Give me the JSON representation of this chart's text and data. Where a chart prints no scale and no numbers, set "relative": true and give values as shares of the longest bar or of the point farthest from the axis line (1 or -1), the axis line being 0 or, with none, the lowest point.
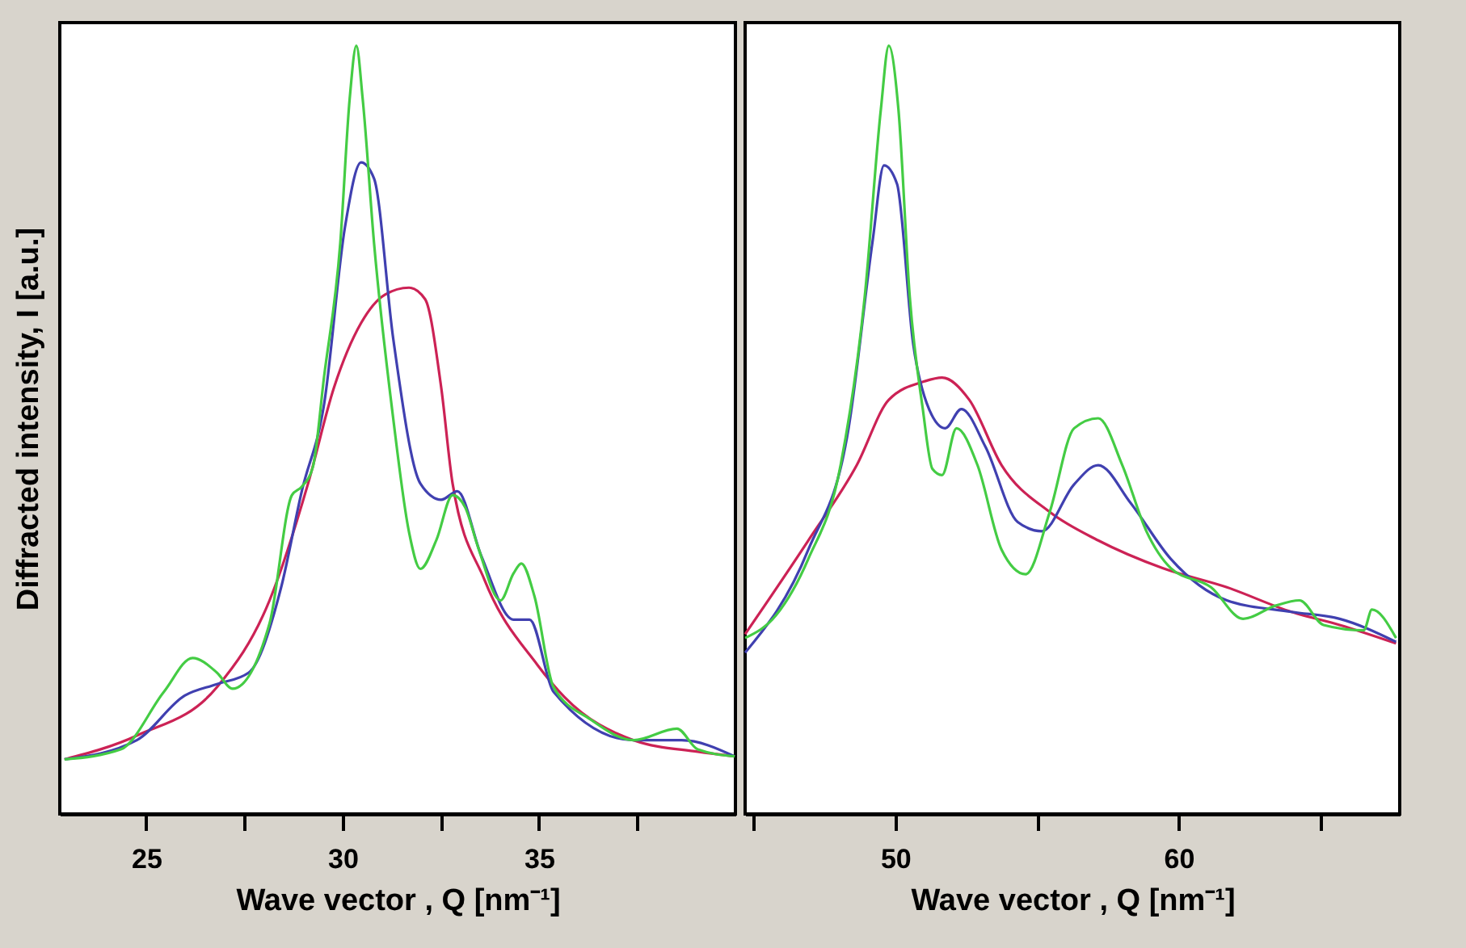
{
  "chart_data": [
    {
      "type": "line",
      "relative": true,
      "xlabel": "Wave vector , Q [nm⁻¹]",
      "ylabel": "Diffracted intensity, I [a.u.]",
      "xlim": [
        22.8,
        40.0
      ],
      "xticks": [
        25,
        {
          "value": 27.5,
          "label": null
        },
        30,
        {
          "value": 32.5,
          "label": null
        },
        35,
        {
          "value": 37.5,
          "label": null
        }
      ],
      "line_style": "solid",
      "series": [
        {
          "color": "#cc2255",
          "x": [
            22.92,
            24.76,
            26.8,
            28.14,
            29.12,
            29.78,
            30.47,
            31.08,
            31.69,
            32.1,
            32.51,
            32.8,
            33.61,
            34.96,
            35.65,
            37.41,
            39.04,
            39.98
          ],
          "values": [
            0.071,
            0.102,
            0.165,
            0.278,
            0.43,
            0.555,
            0.639,
            0.676,
            0.685,
            0.67,
            0.555,
            0.43,
            0.305,
            0.194,
            0.152,
            0.096,
            0.081,
            0.075
          ]
        },
        {
          "color": "#4040b0",
          "x": [
            22.92,
            24.76,
            25.98,
            26.8,
            27.61,
            28.43,
            28.96,
            29.53,
            30.06,
            30.47,
            30.8,
            31.29,
            31.98,
            32.51,
            32.92,
            33.53,
            34.35,
            34.76,
            35.37,
            37.41,
            38.63,
            39.98
          ],
          "values": [
            0.071,
            0.096,
            0.154,
            0.169,
            0.184,
            0.294,
            0.42,
            0.534,
            0.764,
            0.848,
            0.827,
            0.618,
            0.43,
            0.409,
            0.42,
            0.336,
            0.253,
            0.253,
            0.159,
            0.096,
            0.096,
            0.075
          ]
        },
        {
          "color": "#44cc44",
          "x": [
            22.92,
            24.35,
            25.45,
            26.18,
            26.8,
            27.2,
            28.14,
            28.71,
            28.96,
            29.24,
            29.53,
            29.94,
            30.18,
            30.35,
            30.51,
            30.8,
            31.29,
            31.69,
            31.98,
            32.39,
            32.8,
            33.12,
            33.45,
            34.02,
            34.35,
            34.55,
            34.88,
            35.37,
            36.31,
            37.41,
            38.51,
            39.04,
            39.98
          ],
          "values": [
            0.071,
            0.084,
            0.159,
            0.203,
            0.184,
            0.163,
            0.248,
            0.415,
            0.426,
            0.451,
            0.57,
            0.743,
            0.931,
            1.0,
            0.931,
            0.743,
            0.514,
            0.367,
            0.319,
            0.357,
            0.415,
            0.399,
            0.347,
            0.278,
            0.313,
            0.326,
            0.284,
            0.165,
            0.123,
            0.096,
            0.111,
            0.084,
            0.075
          ]
        }
      ]
    },
    {
      "type": "line",
      "relative": true,
      "xlabel": "Wave vector , Q [nm⁻¹]",
      "xlim": [
        44.7,
        67.8
      ],
      "xticks": [
        {
          "value": 45,
          "label": null
        },
        50,
        {
          "value": 55,
          "label": null
        },
        60,
        {
          "value": 65,
          "label": null
        }
      ],
      "line_style": "solid",
      "series": [
        {
          "color": "#cc2255",
          "x": [
            44.7,
            46.93,
            48.64,
            49.77,
            51.02,
            51.65,
            52.61,
            53.75,
            55.45,
            57.16,
            59.43,
            61.7,
            63.98,
            65.68,
            67.67
          ],
          "values": [
            0.234,
            0.356,
            0.454,
            0.539,
            0.563,
            0.568,
            0.539,
            0.454,
            0.393,
            0.356,
            0.32,
            0.295,
            0.263,
            0.246,
            0.222
          ]
        },
        {
          "color": "#4040b0",
          "x": [
            44.7,
            46.93,
            48.35,
            49.2,
            49.6,
            50.06,
            50.63,
            51.19,
            51.76,
            52.33,
            53.18,
            54.32,
            55.17,
            56.31,
            57.16,
            58.3,
            59.72,
            61.7,
            63.98,
            65.68,
            67.67
          ],
          "values": [
            0.21,
            0.344,
            0.502,
            0.746,
            0.844,
            0.82,
            0.612,
            0.527,
            0.502,
            0.527,
            0.478,
            0.38,
            0.368,
            0.429,
            0.454,
            0.405,
            0.332,
            0.278,
            0.263,
            0.254,
            0.224
          ]
        },
        {
          "color": "#44cc44",
          "x": [
            44.7,
            45.8,
            46.93,
            48.07,
            48.92,
            49.49,
            49.77,
            50.11,
            50.51,
            50.97,
            51.31,
            51.65,
            52.16,
            52.9,
            53.75,
            54.6,
            55.45,
            56.31,
            57.16,
            58.01,
            58.86,
            59.72,
            61.14,
            62.27,
            63.41,
            64.26,
            65.11,
            66.53,
            66.82,
            67.67
          ],
          "values": [
            0.229,
            0.259,
            0.332,
            0.454,
            0.673,
            0.917,
            1.0,
            0.917,
            0.673,
            0.527,
            0.449,
            0.441,
            0.502,
            0.454,
            0.344,
            0.312,
            0.393,
            0.502,
            0.515,
            0.454,
            0.368,
            0.32,
            0.295,
            0.254,
            0.271,
            0.278,
            0.246,
            0.239,
            0.266,
            0.229
          ]
        }
      ]
    }
  ]
}
